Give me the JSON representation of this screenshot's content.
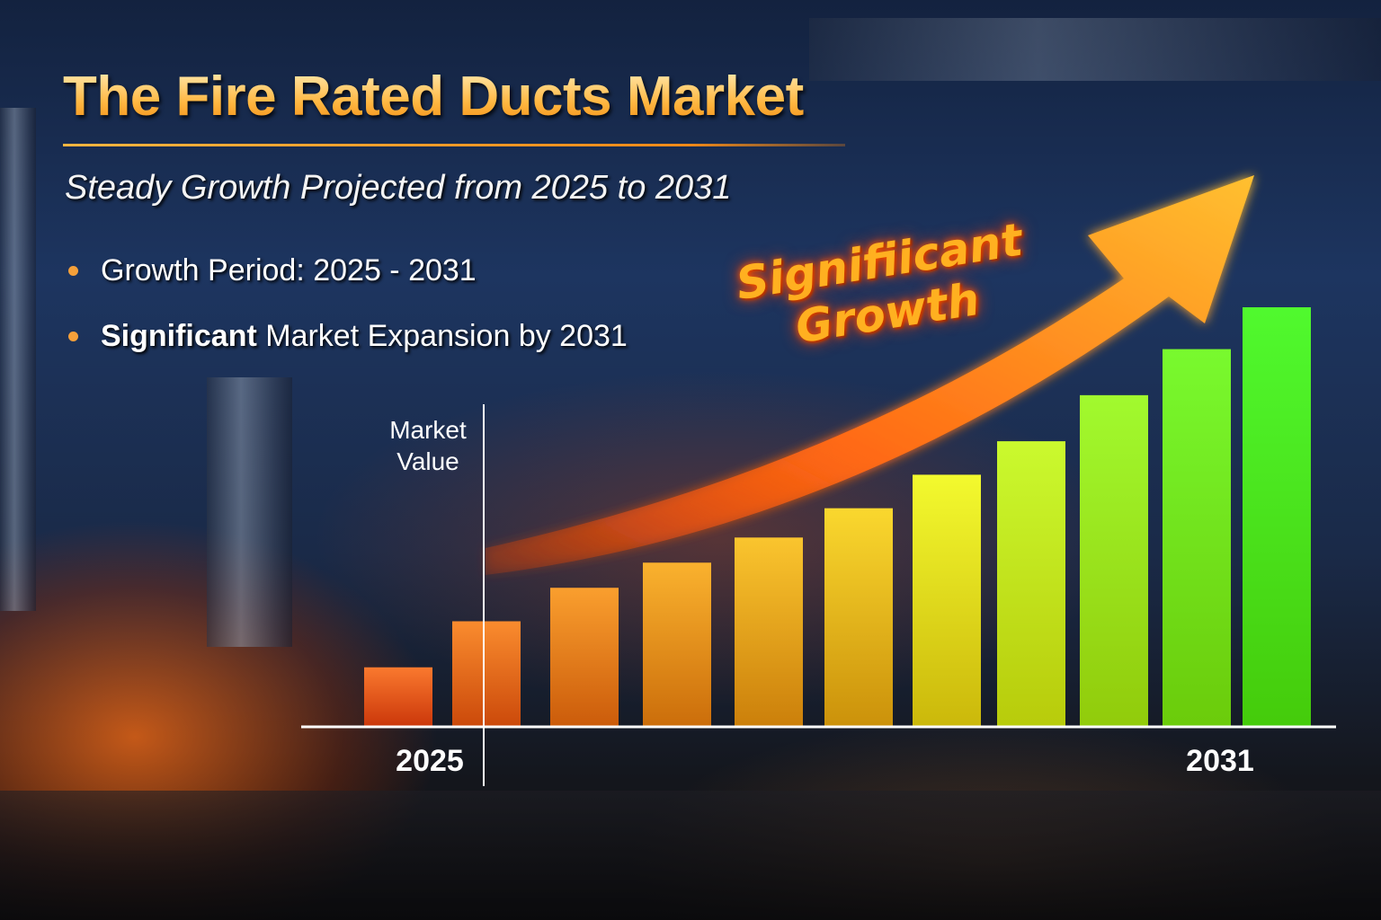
{
  "header": {
    "title": "The Fire Rated Ducts Market",
    "subtitle": "Steady Growth Projected from 2025 to 2031"
  },
  "bullets": [
    {
      "strong": "Growth Period:",
      "text": " 2025 - 2031"
    },
    {
      "strong": "Significant",
      "text": " Market Expansion by 2031"
    }
  ],
  "callout": {
    "line1": "Signifiicant",
    "line2": "Growth"
  },
  "colors": {
    "accent": "#ffb640",
    "bar_start": "#f26a10",
    "bar_end": "#3aa82a",
    "arrow": "#ff7a1a"
  },
  "chart_data": {
    "type": "bar",
    "title": "",
    "ylabel": "Market Value",
    "xlabel": "",
    "x_tick_labels": [
      "2025",
      "2031"
    ],
    "values": [
      14,
      25,
      33,
      39,
      45,
      52,
      60,
      68,
      79,
      90,
      100
    ],
    "ylim": [
      0,
      100
    ],
    "grid": false,
    "value_note_unit": "relative (no axis values printed)",
    "trend_arrow": true
  }
}
